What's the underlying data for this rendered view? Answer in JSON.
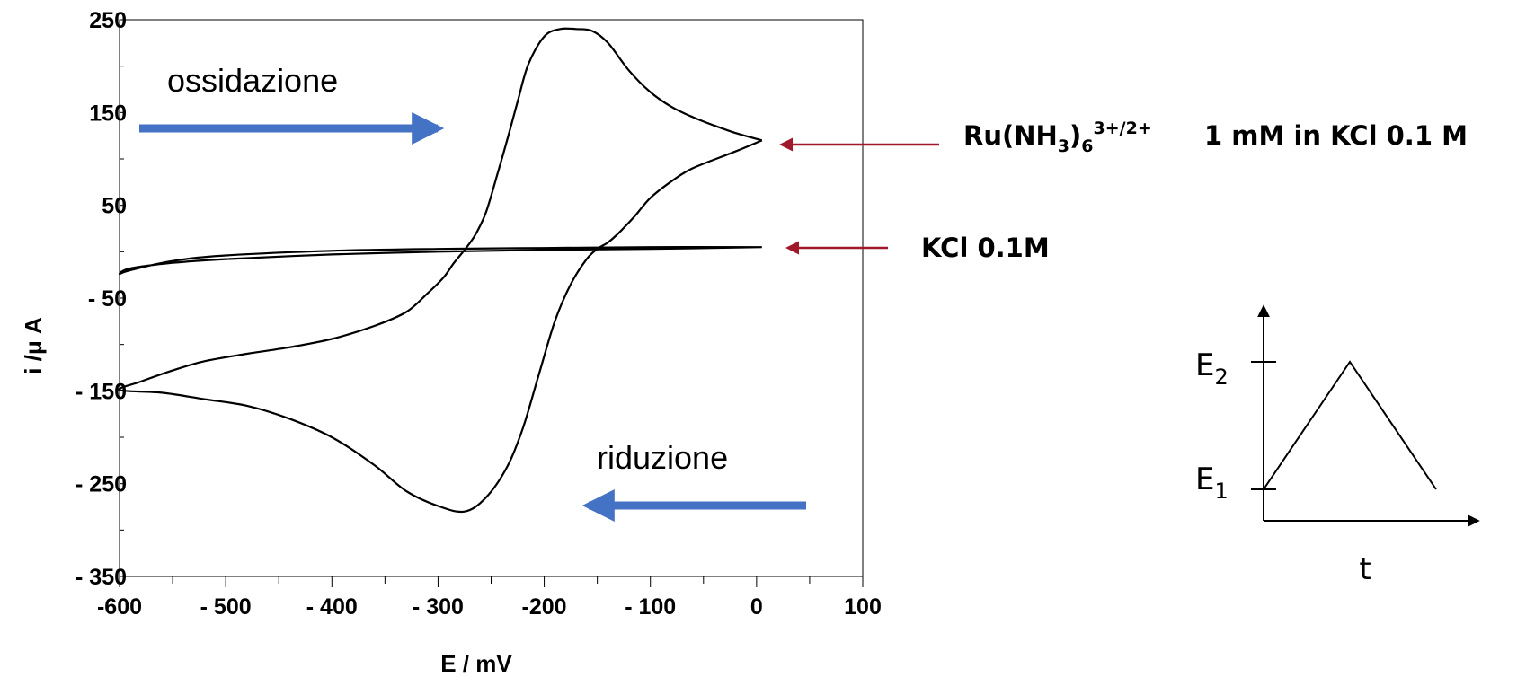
{
  "chart_data": {
    "type": "line",
    "xlabel": "E / mV",
    "ylabel": "i /μ A",
    "xlim": [
      -600,
      100
    ],
    "ylim": [
      -350,
      250
    ],
    "x_ticks": [
      "-600",
      "- 500",
      "- 400",
      "- 300",
      "-200",
      "- 100",
      "0",
      "100"
    ],
    "x_tick_values": [
      -600,
      -500,
      -400,
      -300,
      -200,
      -100,
      0,
      100
    ],
    "y_ticks": [
      "250",
      "150",
      "50",
      "- 50",
      "- 150",
      "- 250",
      "- 350"
    ],
    "y_tick_values": [
      250,
      150,
      50,
      -50,
      -150,
      -250,
      -350
    ],
    "grid": false,
    "series": [
      {
        "name": "Ru(NH3)6 3+/2+ 1 mM in KCl 0.1 M",
        "x": [
          5,
          -20,
          -60,
          -80,
          -100,
          -115,
          -130,
          -140,
          -150,
          -160,
          -175,
          -190,
          -205,
          -220,
          -235,
          -255,
          -275,
          -300,
          -330,
          -360,
          -400,
          -440,
          -480,
          -520,
          -560,
          -600,
          -580,
          -550,
          -520,
          -480,
          -440,
          -400,
          -360,
          -330,
          -310,
          -295,
          -285,
          -275,
          -265,
          -255,
          -245,
          -235,
          -225,
          -215,
          -200,
          -185,
          -170,
          -155,
          -140,
          -120,
          -100,
          -80,
          -60,
          -40,
          -20,
          5
        ],
        "y": [
          120,
          108,
          90,
          76,
          58,
          38,
          20,
          10,
          3,
          -8,
          -35,
          -75,
          -132,
          -190,
          -232,
          -265,
          -280,
          -274,
          -258,
          -230,
          -200,
          -180,
          -166,
          -159,
          -152,
          -149,
          -140,
          -128,
          -118,
          -110,
          -103,
          -94,
          -80,
          -65,
          -45,
          -28,
          -12,
          2,
          18,
          42,
          80,
          120,
          162,
          202,
          232,
          240,
          240,
          238,
          225,
          195,
          172,
          156,
          145,
          136,
          128,
          120
        ]
      },
      {
        "name": "KCl 0.1M",
        "x": [
          5,
          -100,
          -200,
          -300,
          -400,
          -500,
          -550,
          -590,
          -600,
          -590,
          -550,
          -500,
          -400,
          -300,
          -200,
          -100,
          5
        ],
        "y": [
          5,
          5,
          4,
          3,
          1,
          -4,
          -10,
          -20,
          -24,
          -18,
          -12,
          -8,
          -3,
          0,
          2,
          3,
          5
        ]
      }
    ],
    "annotations": {
      "oxidation": "ossidazione",
      "reduction": "riduzione",
      "ru_formula": "Ru(NH",
      "ru_sub3": "3",
      "ru_close": ")",
      "ru_sub6": "6",
      "ru_charge": "3+/2+",
      "ru_conc": "1 mM in KCl 0.1 M",
      "kcl": "KCl 0.1M"
    },
    "inset": {
      "e2": "E",
      "e2_sub": "2",
      "e1": "E",
      "e1_sub": "1",
      "t": "t"
    },
    "colors": {
      "curve": "#000000",
      "blue_arrow": "#4472c4",
      "red_arrow": "#a0192b"
    }
  }
}
